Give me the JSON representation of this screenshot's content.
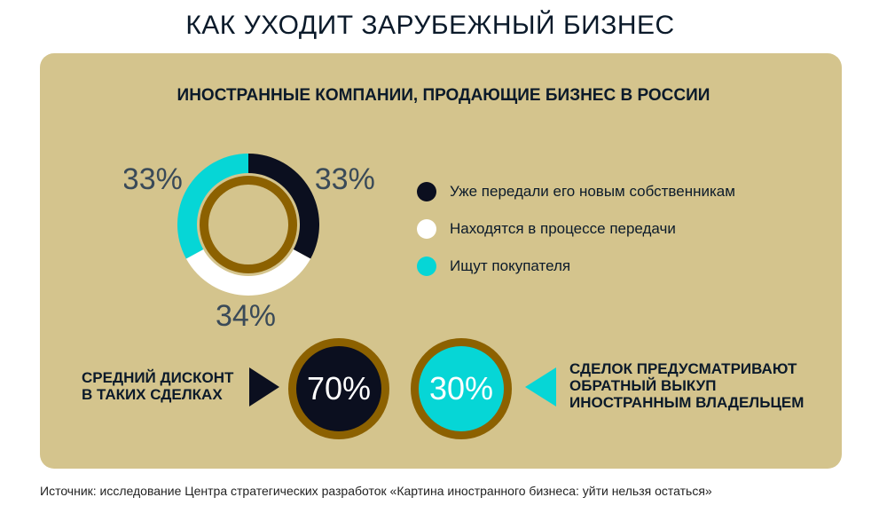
{
  "header": {
    "title": "КАК УХОДИТ ЗАРУБЕЖНЫЙ БИЗНЕС"
  },
  "chart_data": {
    "type": "pie",
    "title": "ИНОСТРАННЫЕ КОМПАНИИ, ПРОДАЮЩИЕ БИЗНЕС В РОССИИ",
    "categories": [
      "Уже передали его новым собственникам",
      "Находятся в процессе передачи",
      "Ищут покупателя"
    ],
    "values": [
      33,
      34,
      33
    ],
    "value_labels": [
      "33%",
      "34%",
      "33%"
    ],
    "colors": [
      "#0b0f1f",
      "#ffffff",
      "#06d6d6"
    ],
    "legend_position": "right"
  },
  "stats": {
    "discount": {
      "label_line1": "СРЕДНИЙ ДИСКОНТ",
      "label_line2": "В ТАКИХ СДЕЛКАХ",
      "value": "70%"
    },
    "buyback": {
      "label_line1": "СДЕЛОК ПРЕДУСМАТРИВАЮТ",
      "label_line2": "ОБРАТНЫЙ ВЫКУП",
      "label_line3": "ИНОСТРАННЫМ ВЛАДЕЛЬЦЕМ",
      "value": "30%"
    }
  },
  "colors": {
    "panel": "#d4c48d",
    "ring": "#8c6100",
    "dark": "#0b0f1f",
    "cyan": "#06d6d6",
    "label_gray": "#3a4a58"
  },
  "footer": {
    "source": "Источник: исследование Центра стратегических разработок «Картина иностранного бизнеса: уйти нельзя остаться»"
  }
}
